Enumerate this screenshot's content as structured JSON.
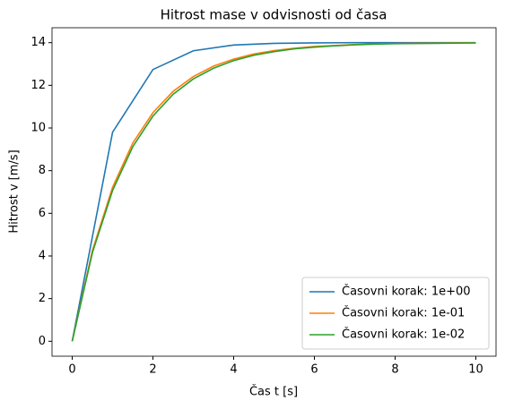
{
  "chart_data": {
    "type": "line",
    "title": "Hitrost mase v odvisnosti od časa",
    "xlabel": "Čas t [s]",
    "ylabel": "Hitrost v [m/s]",
    "xlim": [
      -0.5,
      10.5
    ],
    "xticks": [
      0,
      2,
      4,
      6,
      8,
      10
    ],
    "ylim": [
      -0.7,
      14.7
    ],
    "yticks": [
      0,
      2,
      4,
      6,
      8,
      10,
      12,
      14
    ],
    "legend": "lower right",
    "series": [
      {
        "name": "Časovni korak: 1e+00",
        "color": "#1f77b4",
        "x": [
          0,
          1,
          2,
          3,
          4,
          5,
          6,
          7,
          8,
          9,
          10
        ],
        "values": [
          0,
          9.8,
          12.74,
          13.62,
          13.89,
          13.97,
          13.99,
          14.0,
          14.0,
          14.0,
          14.0
        ]
      },
      {
        "name": "Časovni korak: 1e-01",
        "color": "#ff7f0e",
        "x": [
          0,
          0.5,
          1,
          1.5,
          2,
          2.5,
          3,
          3.5,
          4,
          4.5,
          5,
          5.5,
          6,
          6.5,
          7,
          7.5,
          8,
          8.5,
          9,
          9.5,
          10
        ],
        "values": [
          0,
          4.26,
          7.22,
          9.29,
          10.72,
          11.72,
          12.41,
          12.9,
          13.23,
          13.47,
          13.63,
          13.74,
          13.82,
          13.87,
          13.91,
          13.94,
          13.96,
          13.97,
          13.98,
          13.99,
          13.99
        ]
      },
      {
        "name": "Časovni korak: 1e-02",
        "color": "#2ca02c",
        "x": [
          0,
          0.5,
          1,
          1.5,
          2,
          2.5,
          3,
          3.5,
          4,
          4.5,
          5,
          5.5,
          6,
          6.5,
          7,
          7.5,
          8,
          8.5,
          9,
          9.5,
          10
        ],
        "values": [
          0,
          4.15,
          7.07,
          9.12,
          10.56,
          11.58,
          12.3,
          12.8,
          13.16,
          13.41,
          13.58,
          13.71,
          13.79,
          13.85,
          13.9,
          13.93,
          13.95,
          13.96,
          13.97,
          13.98,
          13.99
        ]
      }
    ]
  }
}
